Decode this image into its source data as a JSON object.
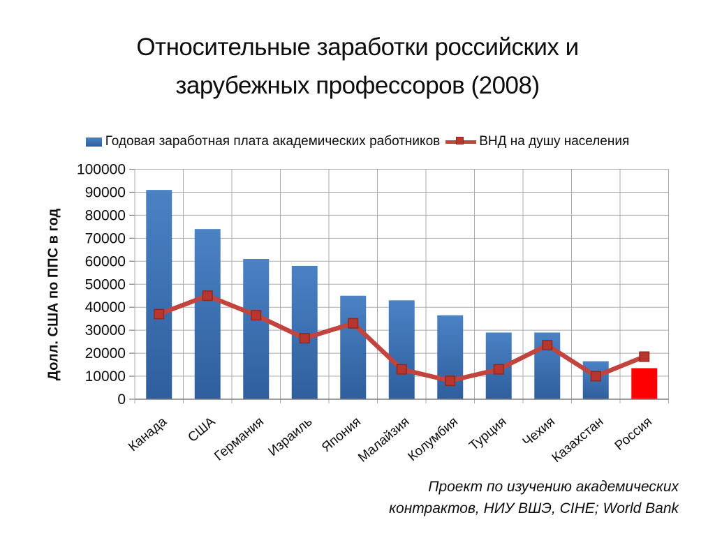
{
  "title": {
    "line1": "Относительные заработки российских и",
    "line2": "зарубежных профессоров (2008)"
  },
  "legend": {
    "salary_label": "Годовая заработная плата академических работников",
    "gni_label": "ВНД на душу населения"
  },
  "caption": {
    "line1": "Проект по изучению академических",
    "line2": "контрактов, НИУ ВШЭ, CIHE; World Bank"
  },
  "colors": {
    "bar_top": "#4a82c4",
    "bar_bottom": "#2f5e9d",
    "highlight_bar": "#ff0000",
    "line": "#c2443e",
    "marker_fill": "#b9362e",
    "marker_stroke": "#8e2823",
    "gridline": "#ababab",
    "axis": "#7f7f7f"
  },
  "chart_data": {
    "type": "bar",
    "subtype": "combo-bar-line",
    "title": "Относительные заработки российских и зарубежных профессоров (2008)",
    "xlabel": "",
    "ylabel": "Долл. США по ППС в год",
    "ylim": [
      0,
      100000
    ],
    "yticks": [
      0,
      10000,
      20000,
      30000,
      40000,
      50000,
      60000,
      70000,
      80000,
      90000,
      100000
    ],
    "grid": true,
    "legend_position": "top",
    "categories": [
      "Канада",
      "США",
      "Германия",
      "Израиль",
      "Япония",
      "Малайзия",
      "Колумбия",
      "Турция",
      "Чехия",
      "Казахстан",
      "Россия"
    ],
    "series": [
      {
        "name": "Годовая заработная плата академических работников",
        "type": "bar",
        "values": [
          91000,
          74000,
          61000,
          58000,
          45000,
          43000,
          36500,
          29000,
          29000,
          16500,
          13500
        ]
      },
      {
        "name": "ВНД на душу населения",
        "type": "line",
        "values": [
          37000,
          45000,
          36500,
          26500,
          33000,
          13000,
          8000,
          13000,
          23500,
          10000,
          18500
        ]
      }
    ],
    "highlight": {
      "index": 10,
      "category": "Россия"
    }
  }
}
